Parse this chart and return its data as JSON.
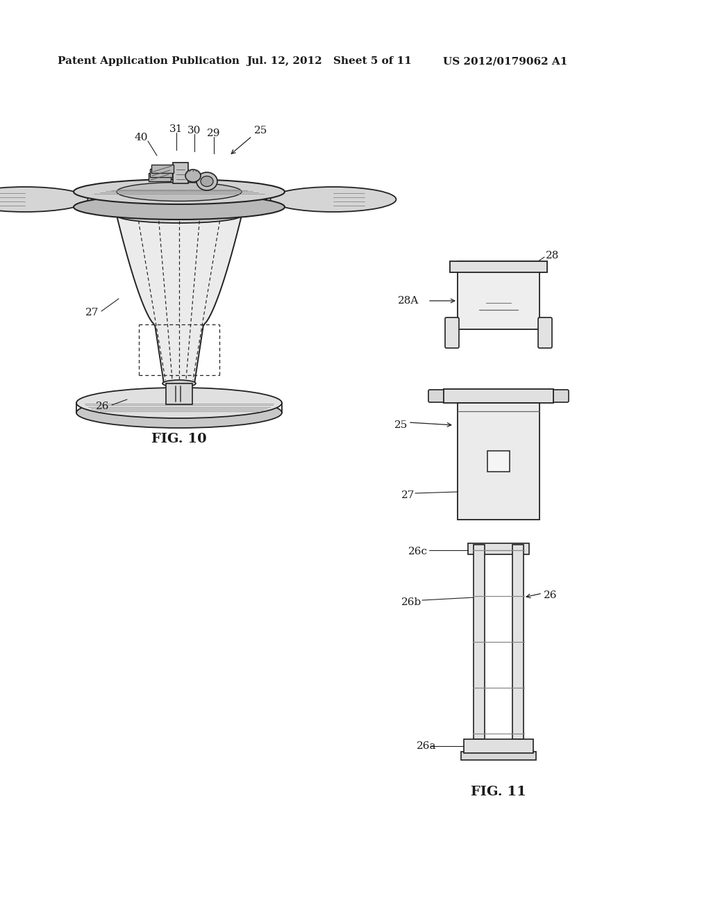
{
  "background_color": "#ffffff",
  "header_text": "Patent Application Publication",
  "header_date": "Jul. 12, 2012",
  "header_sheet": "Sheet 5 of 11",
  "header_patent": "US 2012/0179062 A1",
  "fig10_label": "FIG. 10",
  "fig11_label": "FIG. 11",
  "text_color": "#1a1a1a",
  "line_color": "#222222",
  "label_fontsize": 11,
  "header_fontsize": 11,
  "fig_label_fontsize": 14
}
